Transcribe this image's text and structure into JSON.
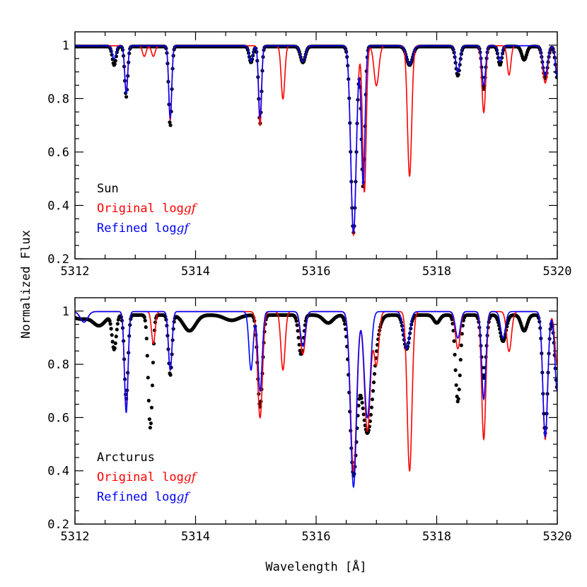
{
  "figure": {
    "ylabel": "Normalized Flux",
    "xlabel": "Wavelength [Å]"
  },
  "colors": {
    "observed": "#000000",
    "original": "#ff0000",
    "refined": "#0000ff"
  },
  "chart_data": [
    {
      "type": "line",
      "panel": "top",
      "xlim": [
        5312,
        5320
      ],
      "ylim": [
        0.2,
        1.05
      ],
      "xticks": [
        5312,
        5314,
        5316,
        5318,
        5320
      ],
      "yticks": [
        0.2,
        0.4,
        0.6,
        0.8,
        1
      ],
      "legend": {
        "placement": "lower-left",
        "entries": [
          {
            "label": "Sun",
            "color": "#000000"
          },
          {
            "label_prefix": "Original log",
            "label_italic": "gf",
            "color": "#ff0000"
          },
          {
            "label_prefix": "Refined log",
            "label_italic": "gf",
            "color": "#0000ff"
          }
        ]
      },
      "series": [
        {
          "name": "Sun",
          "style": "dots",
          "color": "#000000",
          "continuum": 0.995,
          "lines": [
            [
              5312.65,
              0.07,
              0.03
            ],
            [
              5312.85,
              0.19,
              0.025
            ],
            [
              5313.58,
              0.3,
              0.025
            ],
            [
              5314.92,
              0.06,
              0.03
            ],
            [
              5315.07,
              0.29,
              0.025
            ],
            [
              5315.78,
              0.06,
              0.04
            ],
            [
              5316.62,
              0.7,
              0.045
            ],
            [
              5316.78,
              0.53,
              0.03
            ],
            [
              5317.55,
              0.07,
              0.05
            ],
            [
              5318.35,
              0.11,
              0.035
            ],
            [
              5318.78,
              0.16,
              0.03
            ],
            [
              5319.05,
              0.07,
              0.03
            ],
            [
              5319.45,
              0.05,
              0.04
            ],
            [
              5319.8,
              0.12,
              0.04
            ],
            [
              5320.0,
              0.12,
              0.03
            ]
          ]
        },
        {
          "name": "Original loggf",
          "style": "line",
          "color": "#ff0000",
          "continuum": 0.998,
          "lines": [
            [
              5312.85,
              0.17,
              0.025
            ],
            [
              5313.15,
              0.04,
              0.03
            ],
            [
              5313.3,
              0.04,
              0.03
            ],
            [
              5313.58,
              0.28,
              0.025
            ],
            [
              5315.07,
              0.3,
              0.025
            ],
            [
              5315.45,
              0.2,
              0.03
            ],
            [
              5315.78,
              0.06,
              0.04
            ],
            [
              5316.62,
              0.71,
              0.045
            ],
            [
              5316.8,
              0.55,
              0.03
            ],
            [
              5317.0,
              0.15,
              0.04
            ],
            [
              5317.55,
              0.49,
              0.035
            ],
            [
              5318.35,
              0.1,
              0.035
            ],
            [
              5318.78,
              0.25,
              0.03
            ],
            [
              5319.2,
              0.11,
              0.03
            ],
            [
              5319.8,
              0.14,
              0.04
            ],
            [
              5320.0,
              0.1,
              0.03
            ]
          ]
        },
        {
          "name": "Refined loggf",
          "style": "line",
          "color": "#0000ff",
          "continuum": 0.998,
          "lines": [
            [
              5312.65,
              0.05,
              0.03
            ],
            [
              5312.85,
              0.18,
              0.025
            ],
            [
              5313.58,
              0.27,
              0.025
            ],
            [
              5314.92,
              0.06,
              0.03
            ],
            [
              5315.07,
              0.27,
              0.025
            ],
            [
              5315.78,
              0.06,
              0.04
            ],
            [
              5316.62,
              0.7,
              0.045
            ],
            [
              5316.78,
              0.52,
              0.03
            ],
            [
              5317.55,
              0.07,
              0.05
            ],
            [
              5318.35,
              0.1,
              0.035
            ],
            [
              5318.78,
              0.15,
              0.03
            ],
            [
              5319.05,
              0.06,
              0.03
            ],
            [
              5319.8,
              0.11,
              0.04
            ],
            [
              5320.0,
              0.12,
              0.03
            ]
          ]
        }
      ]
    },
    {
      "type": "line",
      "panel": "bottom",
      "xlim": [
        5312,
        5320
      ],
      "ylim": [
        0.2,
        1.05
      ],
      "xticks": [
        5312,
        5314,
        5316,
        5318,
        5320
      ],
      "yticks": [
        0.2,
        0.4,
        0.6,
        0.8,
        1
      ],
      "legend": {
        "placement": "lower-left",
        "entries": [
          {
            "label": "Arcturus",
            "color": "#000000"
          },
          {
            "label_prefix": "Original log",
            "label_italic": "gf",
            "color": "#ff0000"
          },
          {
            "label_prefix": "Refined log",
            "label_italic": "gf",
            "color": "#0000ff"
          }
        ]
      },
      "series": [
        {
          "name": "Arcturus",
          "style": "dots",
          "color": "#000000",
          "continuum": 0.985,
          "lines": [
            [
              5312.1,
              0.015,
              0.12
            ],
            [
              5312.4,
              0.04,
              0.1
            ],
            [
              5312.65,
              0.13,
              0.035
            ],
            [
              5312.85,
              0.32,
              0.03
            ],
            [
              5313.25,
              0.43,
              0.035
            ],
            [
              5313.58,
              0.23,
              0.03
            ],
            [
              5313.9,
              0.06,
              0.1
            ],
            [
              5314.6,
              0.02,
              0.12
            ],
            [
              5315.07,
              0.35,
              0.04
            ],
            [
              5315.75,
              0.15,
              0.04
            ],
            [
              5316.2,
              0.03,
              0.08
            ],
            [
              5316.62,
              0.6,
              0.06
            ],
            [
              5316.85,
              0.45,
              0.1
            ],
            [
              5317.5,
              0.13,
              0.05
            ],
            [
              5318.0,
              0.03,
              0.05
            ],
            [
              5318.35,
              0.33,
              0.04
            ],
            [
              5318.78,
              0.24,
              0.04
            ],
            [
              5319.1,
              0.1,
              0.05
            ],
            [
              5319.45,
              0.06,
              0.05
            ],
            [
              5319.8,
              0.45,
              0.04
            ],
            [
              5320.0,
              0.28,
              0.04
            ]
          ]
        },
        {
          "name": "Original loggf",
          "style": "line",
          "color": "#ff0000",
          "continuum": 0.998,
          "lines": [
            [
              5312.15,
              0.04,
              0.06
            ],
            [
              5312.85,
              0.37,
              0.03
            ],
            [
              5313.3,
              0.12,
              0.03
            ],
            [
              5313.58,
              0.22,
              0.03
            ],
            [
              5315.07,
              0.4,
              0.04
            ],
            [
              5315.45,
              0.22,
              0.035
            ],
            [
              5315.78,
              0.16,
              0.04
            ],
            [
              5316.62,
              0.6,
              0.05
            ],
            [
              5316.85,
              0.45,
              0.05
            ],
            [
              5317.0,
              0.2,
              0.04
            ],
            [
              5317.55,
              0.6,
              0.04
            ],
            [
              5318.35,
              0.14,
              0.04
            ],
            [
              5318.78,
              0.48,
              0.035
            ],
            [
              5319.2,
              0.15,
              0.04
            ],
            [
              5319.8,
              0.48,
              0.04
            ],
            [
              5320.0,
              0.2,
              0.04
            ]
          ]
        },
        {
          "name": "Refined loggf",
          "style": "line",
          "color": "#0000ff",
          "continuum": 0.998,
          "lines": [
            [
              5312.15,
              0.04,
              0.06
            ],
            [
              5312.85,
              0.38,
              0.03
            ],
            [
              5313.58,
              0.22,
              0.03
            ],
            [
              5314.92,
              0.22,
              0.035
            ],
            [
              5315.07,
              0.3,
              0.035
            ],
            [
              5315.78,
              0.13,
              0.04
            ],
            [
              5316.62,
              0.66,
              0.05
            ],
            [
              5316.85,
              0.4,
              0.05
            ],
            [
              5317.5,
              0.14,
              0.05
            ],
            [
              5318.35,
              0.1,
              0.04
            ],
            [
              5318.78,
              0.33,
              0.035
            ],
            [
              5319.1,
              0.1,
              0.04
            ],
            [
              5319.8,
              0.47,
              0.04
            ],
            [
              5320.0,
              0.3,
              0.04
            ]
          ]
        }
      ]
    }
  ]
}
